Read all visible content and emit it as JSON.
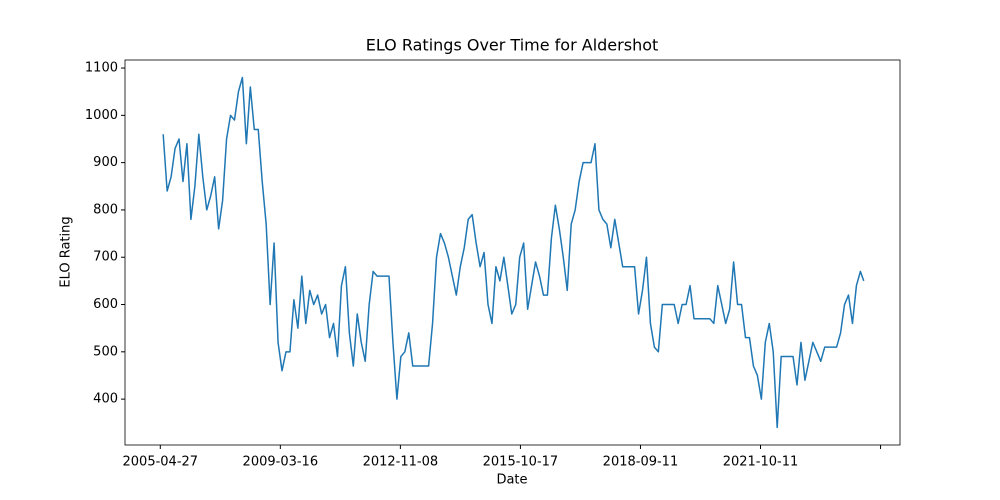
{
  "chart_data": {
    "type": "line",
    "title": "ELO Ratings Over Time for Aldershot",
    "xlabel": "Date",
    "ylabel": "ELO Rating",
    "x": [
      12,
      28.5,
      45,
      61.5,
      78,
      94.5,
      111,
      127.5,
      144,
      160.5,
      177,
      193.5,
      210,
      226.5,
      243,
      259.5,
      276,
      292.5,
      309,
      325.5,
      342,
      358.5,
      375,
      391.5,
      408,
      424.5,
      441,
      457.5,
      474,
      490.5,
      507,
      523.5,
      540,
      556.5,
      573,
      589.5,
      606,
      622.5,
      639,
      655.5,
      672,
      688.5,
      705,
      721.5,
      738,
      754.5,
      771,
      787.5,
      804,
      820.5,
      837,
      853.5,
      870,
      886.5,
      903,
      919.5,
      936,
      952.5,
      969,
      985.5,
      1002,
      1018.5,
      1035,
      1051.5,
      1068,
      1084.5,
      1101,
      1117.5,
      1134,
      1150.5,
      1167,
      1183.5,
      1200,
      1216.5,
      1233,
      1249.5,
      1266,
      1282.5,
      1299,
      1315.5,
      1332,
      1348.5,
      1365,
      1381.5,
      1398,
      1414.5,
      1431,
      1447.5,
      1464,
      1480.5,
      1497,
      1513.5,
      1530,
      1546.5,
      1563,
      1579.5,
      1596,
      1612.5,
      1629,
      1645.5,
      1662,
      1678.5,
      1695,
      1711.5,
      1728,
      1744.5,
      1761,
      1777.5,
      1794,
      1810.5,
      1827,
      1843.5,
      1860,
      1876.5,
      1893,
      1909.5,
      1926,
      1942.5,
      1959,
      1975.5,
      1992,
      2008.5,
      2025,
      2041.5,
      2058,
      2074.5,
      2091,
      2107.5,
      2124,
      2140.5,
      2157,
      2173.5,
      2190,
      2206.5,
      2223,
      2239.5,
      2256,
      2272.5,
      2289,
      2305.5,
      2322,
      2338.5,
      2355,
      2371.5,
      2388,
      2404.5,
      2421,
      2437.5,
      2454,
      2470.5,
      2487,
      2503.5,
      2520,
      2536.5,
      2553,
      2569.5,
      2586,
      2602.5,
      2619,
      2635.5,
      2652,
      2668.5,
      2685,
      2701.5,
      2718,
      2734.5,
      2751,
      2767.5,
      2784,
      2800.5,
      2817,
      2833.5,
      2850,
      2866.5,
      2883,
      2899.5,
      2916,
      2930
    ],
    "series": [
      {
        "name": "Aldershot",
        "color": "#1f77b4",
        "values": [
          960,
          840,
          870,
          930,
          950,
          860,
          940,
          780,
          850,
          960,
          870,
          800,
          830,
          870,
          760,
          820,
          950,
          1000,
          990,
          1050,
          1080,
          940,
          1060,
          970,
          970,
          860,
          770,
          600,
          730,
          520,
          460,
          500,
          500,
          610,
          550,
          660,
          560,
          630,
          600,
          620,
          580,
          600,
          530,
          560,
          490,
          640,
          680,
          540,
          470,
          580,
          520,
          480,
          600,
          670,
          660,
          660,
          660,
          660,
          520,
          400,
          490,
          500,
          540,
          470,
          470,
          470,
          470,
          470,
          560,
          700,
          750,
          730,
          700,
          660,
          620,
          680,
          720,
          780,
          790,
          730,
          680,
          710,
          600,
          560,
          680,
          650,
          700,
          640,
          580,
          600,
          700,
          730,
          590,
          640,
          690,
          660,
          620,
          620,
          740,
          810,
          760,
          700,
          630,
          770,
          800,
          860,
          900,
          900,
          900,
          940,
          800,
          780,
          770,
          720,
          780,
          730,
          680,
          680,
          680,
          680,
          580,
          630,
          700,
          560,
          510,
          500,
          600,
          600,
          600,
          600,
          560,
          600,
          600,
          640,
          570,
          570,
          570,
          570,
          570,
          560,
          640,
          600,
          560,
          590,
          690,
          600,
          600,
          530,
          530,
          470,
          450,
          400,
          520,
          560,
          500,
          340,
          490,
          490,
          490,
          490,
          430,
          520,
          440,
          480,
          520,
          500,
          480,
          510,
          510,
          510,
          510,
          540,
          600,
          620,
          560,
          640,
          670,
          650
        ]
      }
    ],
    "xlim": [
      -147,
      3081
    ],
    "ylim": [
      303,
      1117
    ],
    "xticks": [
      {
        "value": 0,
        "label": "2005-04-27"
      },
      {
        "value": 500,
        "label": "2009-03-16"
      },
      {
        "value": 1000,
        "label": "2012-11-08"
      },
      {
        "value": 1500,
        "label": "2015-10-17"
      },
      {
        "value": 2000,
        "label": "2018-09-11"
      },
      {
        "value": 2500,
        "label": "2021-10-11"
      },
      {
        "value": 3000,
        "label": null
      }
    ],
    "yticks": [
      400,
      500,
      600,
      700,
      800,
      900,
      1000,
      1100
    ]
  }
}
